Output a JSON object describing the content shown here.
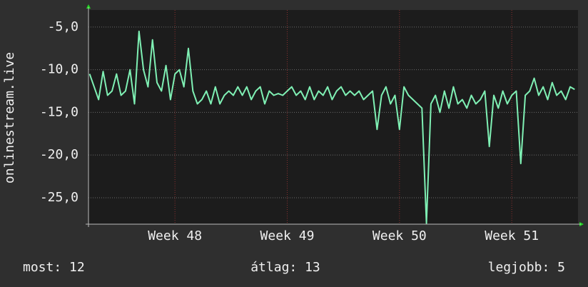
{
  "chart_data": {
    "type": "line",
    "y_label": "onlinestream.live",
    "x": [
      47.24,
      47.28,
      47.32,
      47.36,
      47.4,
      47.44,
      47.48,
      47.52,
      47.56,
      47.6,
      47.64,
      47.68,
      47.72,
      47.76,
      47.8,
      47.84,
      47.88,
      47.92,
      47.96,
      48.0,
      48.04,
      48.08,
      48.12,
      48.16,
      48.2,
      48.24,
      48.28,
      48.32,
      48.36,
      48.4,
      48.44,
      48.48,
      48.52,
      48.56,
      48.6,
      48.64,
      48.68,
      48.72,
      48.76,
      48.8,
      48.84,
      48.88,
      48.92,
      48.96,
      49.0,
      49.04,
      49.08,
      49.12,
      49.16,
      49.2,
      49.24,
      49.28,
      49.32,
      49.36,
      49.4,
      49.44,
      49.48,
      49.52,
      49.56,
      49.6,
      49.64,
      49.68,
      49.72,
      49.76,
      49.8,
      49.84,
      49.88,
      49.92,
      49.96,
      50.0,
      50.04,
      50.08,
      50.12,
      50.16,
      50.2,
      50.24,
      50.28,
      50.32,
      50.36,
      50.4,
      50.44,
      50.48,
      50.52,
      50.56,
      50.6,
      50.64,
      50.68,
      50.72,
      50.76,
      50.8,
      50.84,
      50.88,
      50.92,
      50.96,
      51.0,
      51.04,
      51.08,
      51.12,
      51.16,
      51.2,
      51.24,
      51.28,
      51.32,
      51.36,
      51.4,
      51.44,
      51.48,
      51.52,
      51.56
    ],
    "series": [
      {
        "color": "#7ff0b4",
        "values": [
          -10.5,
          -12,
          -13.5,
          -10.2,
          -13,
          -12.5,
          -10.5,
          -13,
          -12.5,
          -10,
          -14,
          -5.5,
          -10,
          -12,
          -6.5,
          -11.5,
          -12.5,
          -9.5,
          -13.5,
          -10.5,
          -10,
          -12,
          -7.5,
          -12.5,
          -14,
          -13.5,
          -12.5,
          -14,
          -12,
          -14,
          -13,
          -12.5,
          -13,
          -12,
          -13,
          -12,
          -13.5,
          -12.5,
          -12,
          -14,
          -12.5,
          -13,
          -12.8,
          -13,
          -12.5,
          -12,
          -13,
          -12.5,
          -13.5,
          -12,
          -13.5,
          -12.5,
          -13,
          -12,
          -13.5,
          -12.5,
          -12,
          -13,
          -12.5,
          -13,
          -12.5,
          -13.5,
          -13,
          -12.5,
          -17,
          -13,
          -12,
          -14,
          -13,
          -17,
          -12,
          -13,
          -13.5,
          -14,
          -14.5,
          -28,
          -14,
          -13,
          -15,
          -12.5,
          -14.5,
          -12,
          -14,
          -13.5,
          -14.5,
          -13,
          -14,
          -13.5,
          -12.5,
          -19,
          -13,
          -14.5,
          -12.5,
          -14,
          -13,
          -12.5,
          -21,
          -13,
          -12.5,
          -11,
          -13,
          -12,
          -13.5,
          -11.5,
          -13,
          -12.5,
          -13.5,
          -12,
          -12.3
        ]
      }
    ],
    "xlim": [
      47.23,
      51.59
    ],
    "xticks": [
      {
        "value": 48,
        "label": "Week 48"
      },
      {
        "value": 49,
        "label": "Week 49"
      },
      {
        "value": 50,
        "label": "Week 50"
      },
      {
        "value": 51,
        "label": "Week 51"
      }
    ],
    "ylim": [
      -28.1,
      -3
    ],
    "yticks": [
      {
        "value": -5,
        "label": "-5,0"
      },
      {
        "value": -10,
        "label": "-10,0"
      },
      {
        "value": -15,
        "label": "-15,0"
      },
      {
        "value": -20,
        "label": "-20,0"
      },
      {
        "value": -25,
        "label": "-25,0"
      }
    ],
    "grid": true,
    "footer": [
      "most: 12",
      "átlag: 13",
      "legjobb: 5"
    ]
  }
}
